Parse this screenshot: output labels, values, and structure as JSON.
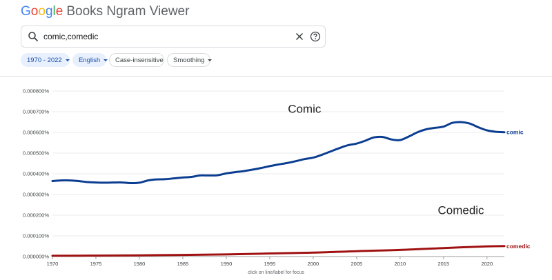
{
  "app": {
    "logo_letters": [
      {
        "ch": "G",
        "color": "#4285F4"
      },
      {
        "ch": "o",
        "color": "#EA4335"
      },
      {
        "ch": "o",
        "color": "#FBBC05"
      },
      {
        "ch": "g",
        "color": "#4285F4"
      },
      {
        "ch": "l",
        "color": "#34A853"
      },
      {
        "ch": "e",
        "color": "#EA4335"
      }
    ],
    "title": "Books Ngram Viewer"
  },
  "search": {
    "query": "comic,comedic",
    "search_icon": "search-icon",
    "clear_icon": "close-icon",
    "help_icon": "help-circle-icon"
  },
  "filters": {
    "year_range": "1970 - 2022",
    "corpus": "English",
    "case": "Case-insensitive",
    "smoothing": "Smoothing"
  },
  "footer": {
    "hint": "click on line/label for focus"
  },
  "chart_data": {
    "type": "line",
    "x_range": [
      1970,
      2022
    ],
    "ylim": [
      0,
      0.0008
    ],
    "x_ticks": [
      1970,
      1975,
      1980,
      1985,
      1990,
      1995,
      2000,
      2005,
      2010,
      2015,
      2020
    ],
    "y_ticks": [
      "0.000000%",
      "0.000100%",
      "0.000200%",
      "0.000300%",
      "0.000400%",
      "0.000500%",
      "0.000600%",
      "0.000700%",
      "0.000800%"
    ],
    "grid": true,
    "annotations": [
      {
        "text": "Comic",
        "x": 1999,
        "y": 0.000695
      },
      {
        "text": "Comedic",
        "x": 2017,
        "y": 0.000205
      }
    ],
    "series": [
      {
        "name": "comic",
        "color": "#0b3d91",
        "x": [
          1970,
          1971,
          1972,
          1973,
          1974,
          1975,
          1976,
          1977,
          1978,
          1979,
          1980,
          1981,
          1982,
          1983,
          1984,
          1985,
          1986,
          1987,
          1988,
          1989,
          1990,
          1991,
          1992,
          1993,
          1994,
          1995,
          1996,
          1997,
          1998,
          1999,
          2000,
          2001,
          2002,
          2003,
          2004,
          2005,
          2006,
          2007,
          2008,
          2009,
          2010,
          2011,
          2012,
          2013,
          2014,
          2015,
          2016,
          2017,
          2018,
          2019,
          2020,
          2021,
          2022
        ],
        "values": [
          0.000365,
          0.000368,
          0.000368,
          0.000365,
          0.00036,
          0.000358,
          0.000357,
          0.000358,
          0.000358,
          0.000355,
          0.000357,
          0.000368,
          0.000373,
          0.000374,
          0.000378,
          0.000382,
          0.000385,
          0.000392,
          0.000392,
          0.000393,
          0.000402,
          0.000408,
          0.000413,
          0.00042,
          0.000428,
          0.000437,
          0.000445,
          0.000452,
          0.000461,
          0.000471,
          0.000478,
          0.000492,
          0.000508,
          0.000524,
          0.000538,
          0.000546,
          0.00056,
          0.000576,
          0.000578,
          0.000566,
          0.000563,
          0.00058,
          0.000601,
          0.000615,
          0.000622,
          0.000628,
          0.000646,
          0.00065,
          0.000643,
          0.000625,
          0.00061,
          0.000603,
          0.000601
        ]
      },
      {
        "name": "comedic",
        "color": "#a01111",
        "x": [
          1970,
          1975,
          1980,
          1985,
          1990,
          1995,
          2000,
          2005,
          2010,
          2015,
          2020,
          2022
        ],
        "values": [
          3.5e-06,
          4.5e-06,
          6e-06,
          8e-06,
          1.05e-05,
          1.5e-05,
          1.9e-05,
          2.6e-05,
          3.2e-05,
          4.1e-05,
          4.9e-05,
          5.05e-05
        ]
      }
    ]
  }
}
